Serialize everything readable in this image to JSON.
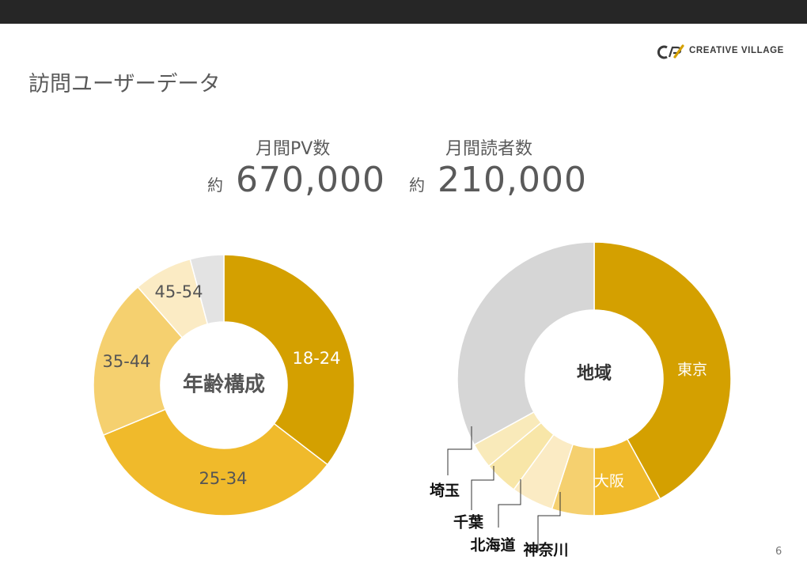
{
  "header": {
    "title": "訪問ユーザーデータ"
  },
  "logo": {
    "text": "CREATIVE VILLAGE"
  },
  "metrics": [
    {
      "label": "月間PV数",
      "prefix": "約",
      "value": "670,000"
    },
    {
      "label": "月間読者数",
      "prefix": "約",
      "value": "210,000"
    }
  ],
  "page_number": "6",
  "chart_data": [
    {
      "type": "pie",
      "center_label": "年齢構成",
      "slices": [
        {
          "label": "18-24",
          "value": 34,
          "color": "#D4A000"
        },
        {
          "label": "25-34",
          "value": 32,
          "color": "#F0BA2B"
        },
        {
          "label": "35-44",
          "value": 19,
          "color": "#F5D06F"
        },
        {
          "label": "45-54",
          "value": 7,
          "color": "#FBEBC4"
        },
        {
          "label": "",
          "value": 4,
          "color": "#E3E3E3"
        }
      ]
    },
    {
      "type": "pie",
      "center_label": "地域",
      "slices": [
        {
          "label": "東京",
          "value": 42,
          "color": "#D4A000"
        },
        {
          "label": "大阪",
          "value": 8,
          "color": "#F0BA2B"
        },
        {
          "label": "神奈川",
          "value": 5,
          "color": "#F5D06F"
        },
        {
          "label": "北海道",
          "value": 5,
          "color": "#FBEBC4"
        },
        {
          "label": "千葉",
          "value": 4,
          "color": "#F8E6A8"
        },
        {
          "label": "埼玉",
          "value": 3,
          "color": "#F9EABA"
        },
        {
          "label": "",
          "value": 33,
          "color": "#D6D6D6"
        }
      ]
    }
  ],
  "colors": {
    "topbar": "#262626",
    "brand_gold": "#D4A000",
    "text": "#5A5A5A"
  }
}
